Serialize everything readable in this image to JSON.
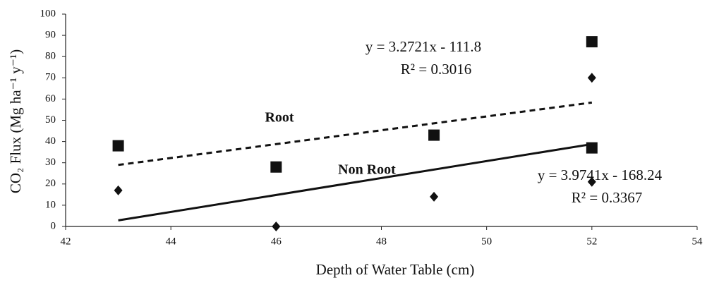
{
  "chart_data": {
    "type": "scatter",
    "x_label": "Depth of Water Table (cm)",
    "y_label": "CO₂ Flux (Mg ha⁻¹ y⁻¹)",
    "xlim": [
      42,
      54
    ],
    "xticks": [
      42,
      44,
      46,
      48,
      50,
      52,
      54
    ],
    "ylim": [
      0,
      100
    ],
    "yticks": [
      0,
      10,
      20,
      30,
      40,
      50,
      60,
      70,
      80,
      90,
      100
    ],
    "grid": false,
    "series": [
      {
        "name": "Root",
        "color": "#111111",
        "marker": "square",
        "trendline": "dashed",
        "x": [
          43,
          46,
          49,
          52,
          52
        ],
        "values": [
          38,
          28,
          43,
          87,
          37
        ]
      },
      {
        "name": "Non Root",
        "color": "#111111",
        "marker": "diamond",
        "trendline": "solid",
        "x": [
          43,
          46,
          49,
          52,
          52
        ],
        "values": [
          17,
          0,
          14,
          70,
          21
        ]
      }
    ],
    "annotations": [
      "y = 3.2721x - 111.8",
      "R² = 0.3016",
      "y = 3.9741x - 168.24",
      "R² = 0.3367"
    ]
  }
}
